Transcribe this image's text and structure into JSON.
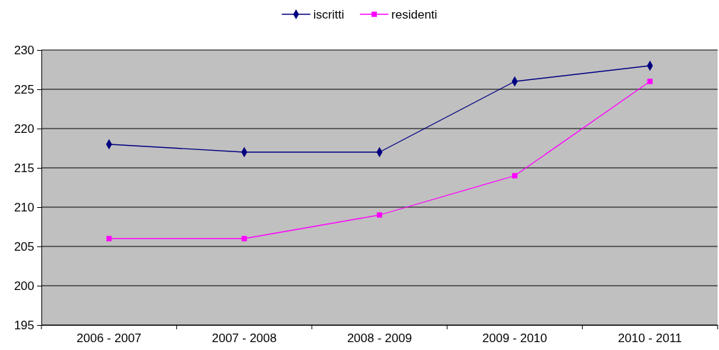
{
  "chart_data": {
    "type": "line",
    "categories": [
      "2006 - 2007",
      "2007 - 2008",
      "2008 - 2009",
      "2009 - 2010",
      "2010 - 2011"
    ],
    "series": [
      {
        "name": "iscritti",
        "color": "#000080",
        "marker": "diamond",
        "values": [
          218,
          217,
          217,
          226,
          228
        ]
      },
      {
        "name": "residenti",
        "color": "#ff00ff",
        "marker": "square",
        "values": [
          206,
          206,
          209,
          214,
          226
        ]
      }
    ],
    "ylim": [
      195,
      230
    ],
    "yticks": [
      195,
      200,
      205,
      210,
      215,
      220,
      225,
      230
    ],
    "grid": "y",
    "legend": "top"
  }
}
